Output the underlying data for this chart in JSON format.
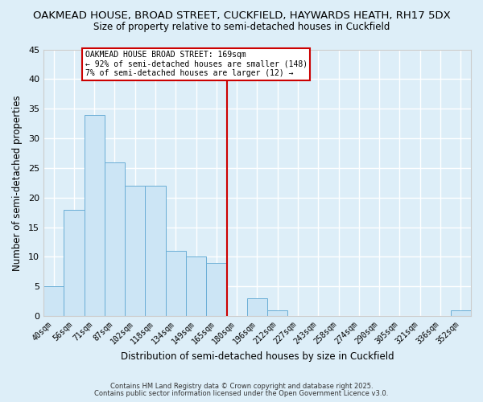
{
  "title_line1": "OAKMEAD HOUSE, BROAD STREET, CUCKFIELD, HAYWARDS HEATH, RH17 5DX",
  "title_line2": "Size of property relative to semi-detached houses in Cuckfield",
  "xlabel": "Distribution of semi-detached houses by size in Cuckfield",
  "ylabel": "Number of semi-detached properties",
  "bar_labels": [
    "40sqm",
    "56sqm",
    "71sqm",
    "87sqm",
    "102sqm",
    "118sqm",
    "134sqm",
    "149sqm",
    "165sqm",
    "180sqm",
    "196sqm",
    "212sqm",
    "227sqm",
    "243sqm",
    "258sqm",
    "274sqm",
    "290sqm",
    "305sqm",
    "321sqm",
    "336sqm",
    "352sqm"
  ],
  "bar_heights": [
    5,
    18,
    34,
    26,
    22,
    22,
    11,
    10,
    9,
    0,
    3,
    1,
    0,
    0,
    0,
    0,
    0,
    0,
    0,
    0,
    1
  ],
  "bar_color": "#cce5f5",
  "bar_edge_color": "#6aaed6",
  "background_color": "#ddeef8",
  "grid_color": "#ffffff",
  "vline_x": 8.5,
  "vline_color": "#cc0000",
  "annotation_title": "OAKMEAD HOUSE BROAD STREET: 169sqm",
  "annotation_line2": "← 92% of semi-detached houses are smaller (148)",
  "annotation_line3": "7% of semi-detached houses are larger (12) →",
  "annotation_box_edge": "#cc0000",
  "ylim": [
    0,
    45
  ],
  "yticks": [
    0,
    5,
    10,
    15,
    20,
    25,
    30,
    35,
    40,
    45
  ],
  "footnote1": "Contains HM Land Registry data © Crown copyright and database right 2025.",
  "footnote2": "Contains public sector information licensed under the Open Government Licence v3.0."
}
